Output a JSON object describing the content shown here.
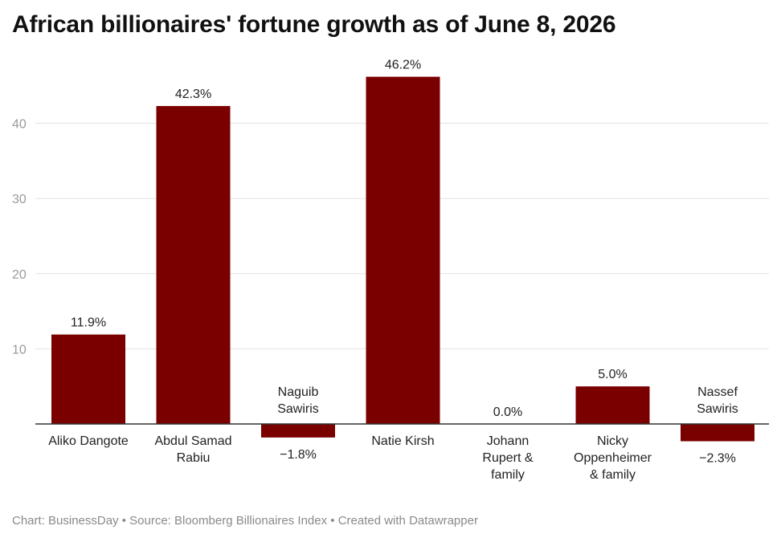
{
  "title": "African billionaires' fortune growth as of June 8, 2026",
  "footer": "Chart: BusinessDay • Source: Bloomberg Billionaires Index • Created with Datawrapper",
  "colors": {
    "bar": "#7a0000"
  },
  "chart_data": {
    "type": "bar",
    "title": "African billionaires' fortune growth as of June 8, 2026",
    "categories": [
      "Aliko Dangote",
      "Abdul Samad Rabiu",
      "Naguib Sawiris",
      "Natie Kirsh",
      "Johann Rupert & family",
      "Nicky Oppenheimer & family",
      "Nassef Sawiris"
    ],
    "category_lines": [
      [
        "Aliko Dangote"
      ],
      [
        "Abdul Samad",
        "Rabiu"
      ],
      [
        "Naguib",
        "Sawiris"
      ],
      [
        "Natie Kirsh"
      ],
      [
        "Johann",
        "Rupert &",
        "family"
      ],
      [
        "Nicky",
        "Oppenheimer",
        "& family"
      ],
      [
        "Nassef",
        "Sawiris"
      ]
    ],
    "values": [
      11.9,
      42.3,
      -1.8,
      46.2,
      0.0,
      5.0,
      -2.3
    ],
    "data_labels": [
      "11.9%",
      "42.3%",
      "−1.8%",
      "46.2%",
      "0.0%",
      "5.0%",
      "−2.3%"
    ],
    "yticks": [
      10,
      20,
      30,
      40
    ],
    "ytick_labels": [
      "10",
      "20",
      "30",
      "40"
    ],
    "ylim": [
      -2.3,
      46.2
    ],
    "xlabel": "",
    "ylabel": "",
    "grid": true,
    "legend": "none"
  }
}
